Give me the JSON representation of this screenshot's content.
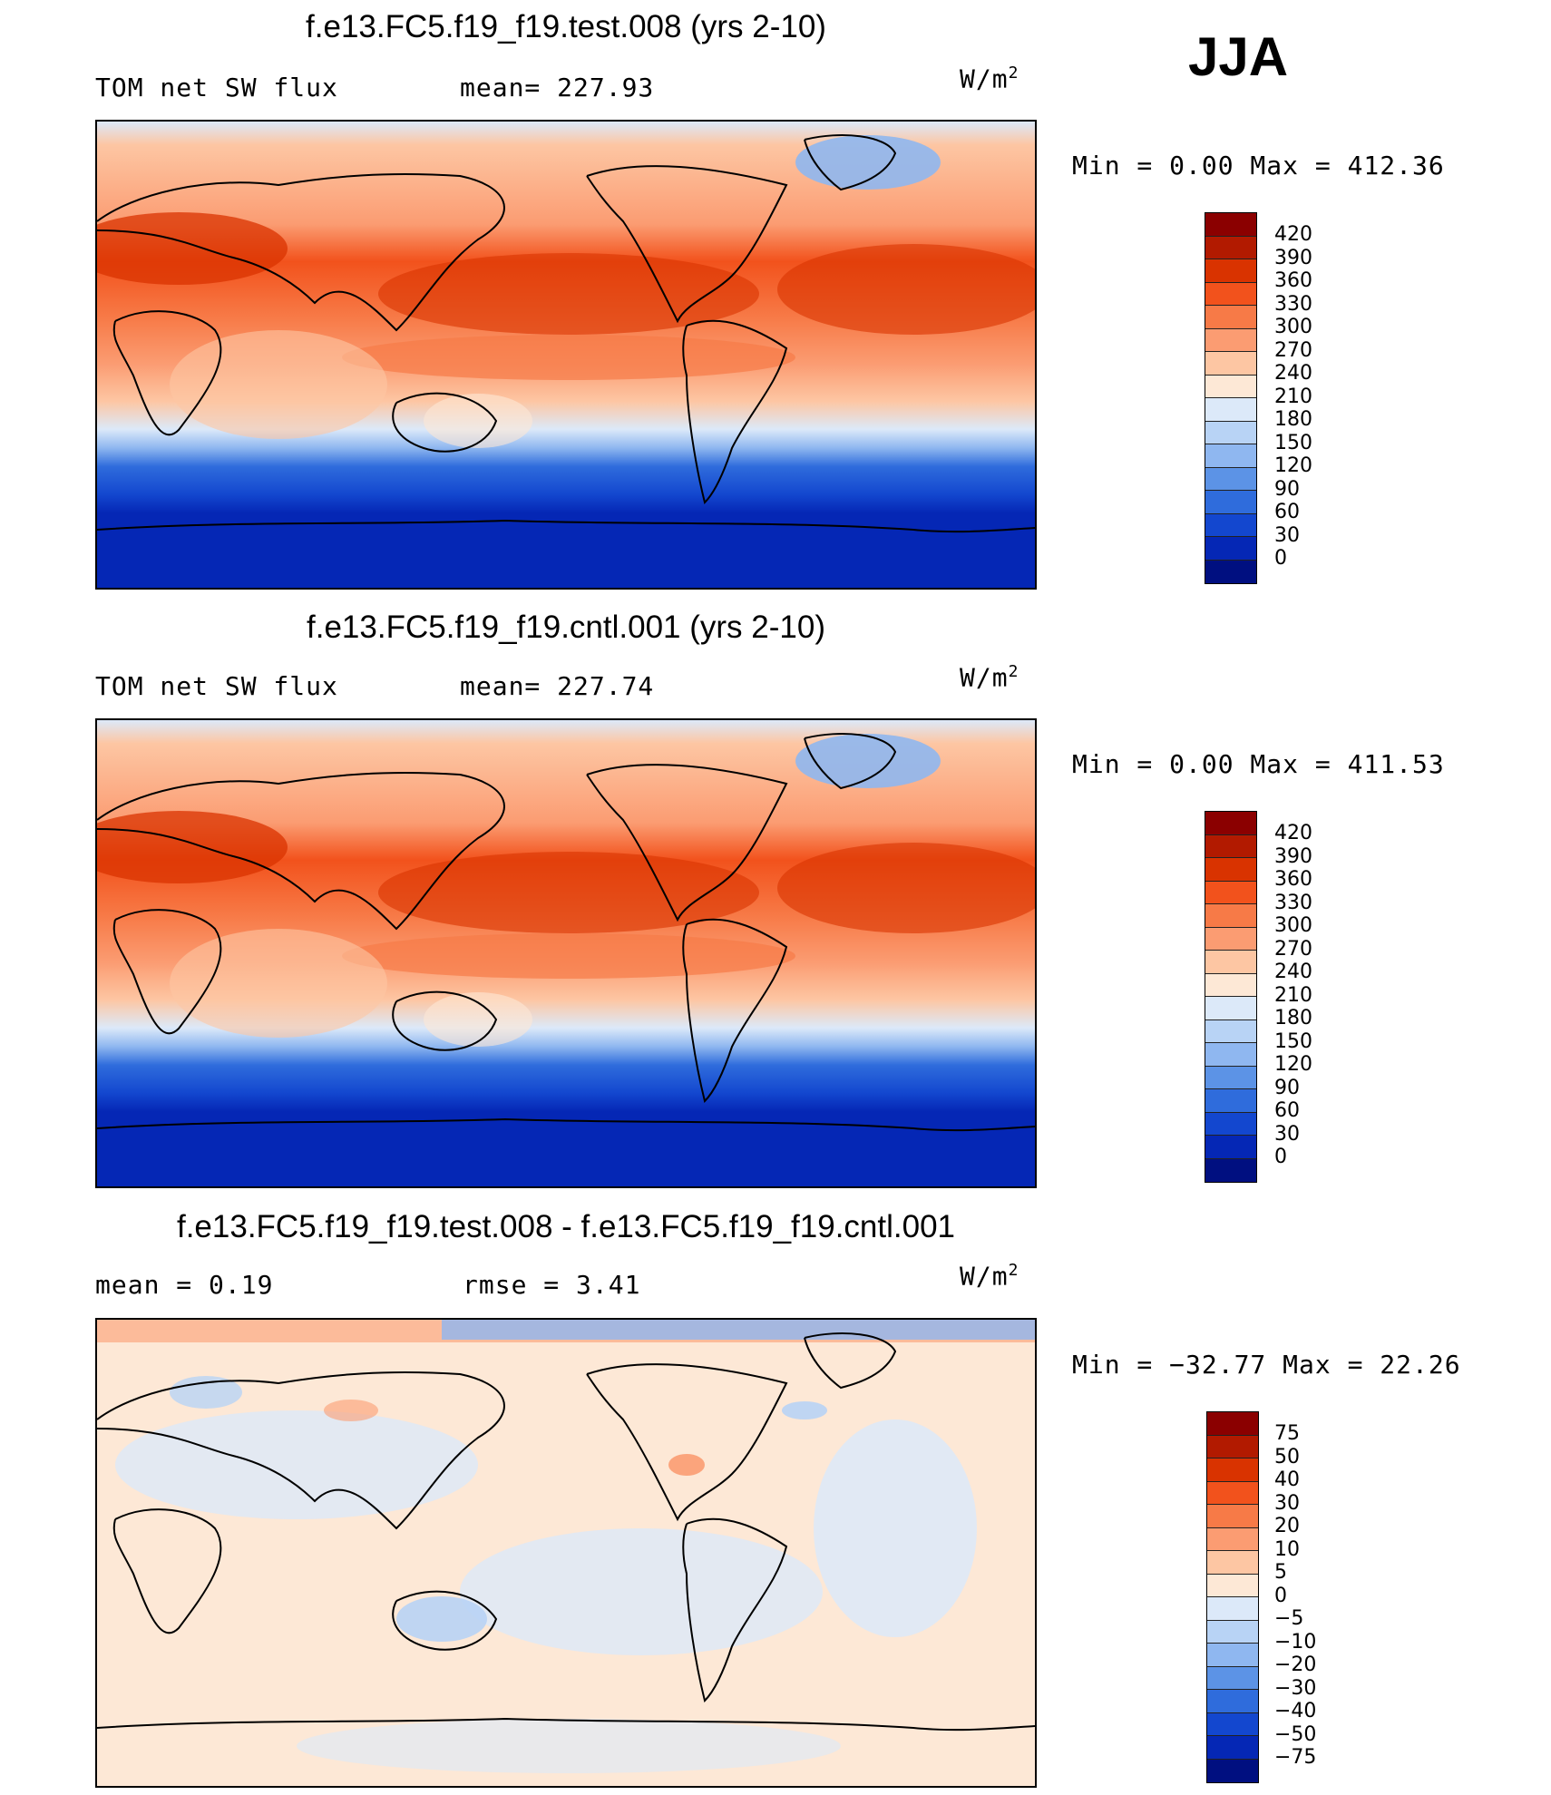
{
  "season": "JJA",
  "panels": [
    {
      "title": "f.e13.FC5.f19_f19.test.008 (yrs 2-10)",
      "left_label": "TOM net SW flux",
      "mid_label": "mean=  227.93",
      "units_base": "W/m",
      "units_exp": "2",
      "minmax": "Min  =    0.00 Max  = 412.36",
      "colorbar": {
        "labels": [
          "420",
          "390",
          "360",
          "330",
          "300",
          "270",
          "240",
          "210",
          "180",
          "150",
          "120",
          "90",
          "60",
          "30",
          "0"
        ],
        "colors": [
          "#8b0000",
          "#b21a00",
          "#d93300",
          "#f2521c",
          "#f77a47",
          "#fb9c72",
          "#fdc6a3",
          "#fde8d6",
          "#dce9f9",
          "#b8d3f5",
          "#8fb7f0",
          "#5c93e6",
          "#2f6cdc",
          "#1347cf",
          "#0527b5",
          "#000f80"
        ]
      }
    },
    {
      "title": "f.e13.FC5.f19_f19.cntl.001 (yrs 2-10)",
      "left_label": "TOM net SW flux",
      "mid_label": "mean=  227.74",
      "units_base": "W/m",
      "units_exp": "2",
      "minmax": "Min  =    0.00 Max  = 411.53",
      "colorbar": {
        "labels": [
          "420",
          "390",
          "360",
          "330",
          "300",
          "270",
          "240",
          "210",
          "180",
          "150",
          "120",
          "90",
          "60",
          "30",
          "0"
        ],
        "colors": [
          "#8b0000",
          "#b21a00",
          "#d93300",
          "#f2521c",
          "#f77a47",
          "#fb9c72",
          "#fdc6a3",
          "#fde8d6",
          "#dce9f9",
          "#b8d3f5",
          "#8fb7f0",
          "#5c93e6",
          "#2f6cdc",
          "#1347cf",
          "#0527b5",
          "#000f80"
        ]
      }
    },
    {
      "title": "f.e13.FC5.f19_f19.test.008 - f.e13.FC5.f19_f19.cntl.001",
      "left_label": "mean  =    0.19",
      "mid_label": "rmse  =    3.41",
      "units_base": "W/m",
      "units_exp": "2",
      "minmax": "Min  = −32.77 Max  =   22.26",
      "colorbar": {
        "labels": [
          "75",
          "50",
          "40",
          "30",
          "20",
          "10",
          "5",
          "0",
          "−5",
          "−10",
          "−20",
          "−30",
          "−40",
          "−50",
          "−75"
        ],
        "colors": [
          "#8b0000",
          "#b21a00",
          "#d93300",
          "#f2521c",
          "#f77a47",
          "#fb9c72",
          "#fdc6a3",
          "#fde8d6",
          "#dce9f9",
          "#b8d3f5",
          "#8fb7f0",
          "#5c93e6",
          "#2f6cdc",
          "#1347cf",
          "#0527b5",
          "#000f80"
        ]
      }
    }
  ]
}
